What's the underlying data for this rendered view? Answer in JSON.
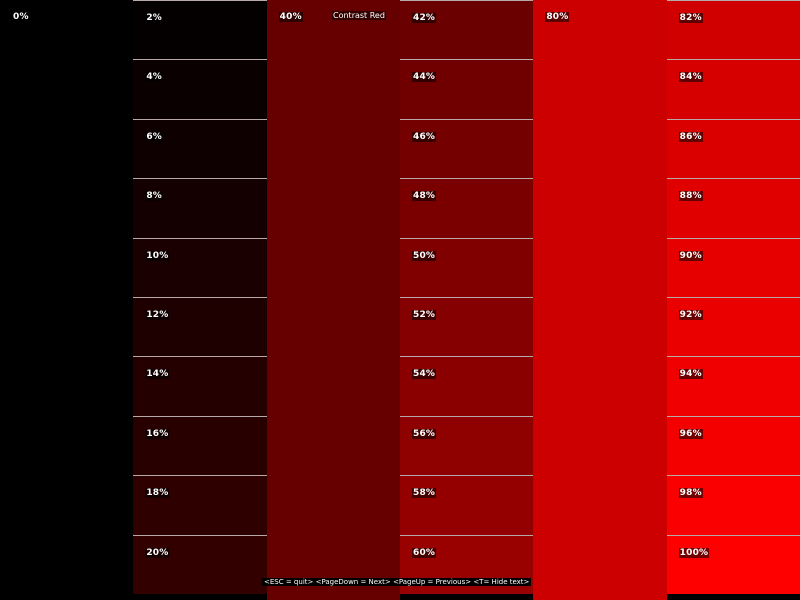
{
  "title": "Contrast Red",
  "help_text": "<ESC = quit>  <PageDown = Next>  <PageUp = Previous>  <T= Hide text>",
  "base_color": "#ff0000",
  "columns": [
    {
      "type": "full",
      "levels": [
        "0%"
      ]
    },
    {
      "type": "steps",
      "levels": [
        "2%",
        "4%",
        "6%",
        "8%",
        "10%",
        "12%",
        "14%",
        "16%",
        "18%",
        "20%"
      ]
    },
    {
      "type": "full",
      "levels": [
        "40%"
      ]
    },
    {
      "type": "steps",
      "levels": [
        "42%",
        "44%",
        "46%",
        "48%",
        "50%",
        "52%",
        "54%",
        "56%",
        "58%",
        "60%"
      ]
    },
    {
      "type": "full",
      "levels": [
        "80%"
      ]
    },
    {
      "type": "steps",
      "levels": [
        "82%",
        "84%",
        "86%",
        "88%",
        "90%",
        "92%",
        "94%",
        "96%",
        "98%",
        "100%"
      ]
    }
  ]
}
